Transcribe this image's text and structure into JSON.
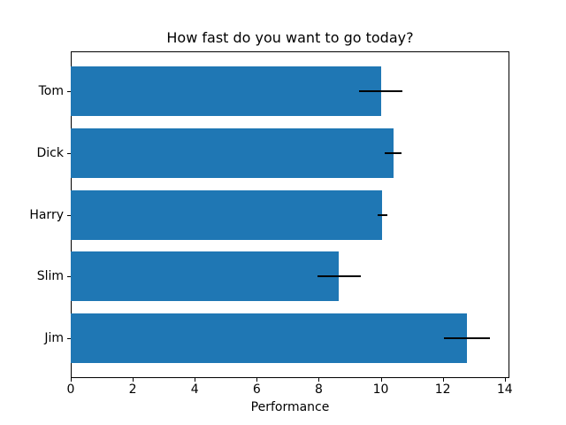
{
  "chart_data": {
    "type": "bar",
    "orientation": "horizontal",
    "title": "How fast do you want to go today?",
    "xlabel": "Performance",
    "ylabel": "",
    "categories": [
      "Tom",
      "Dick",
      "Harry",
      "Slim",
      "Jim"
    ],
    "values": [
      10.0,
      10.4,
      10.05,
      8.65,
      12.78
    ],
    "errors": [
      0.7,
      0.28,
      0.15,
      0.7,
      0.73
    ],
    "xticks": [
      0,
      2,
      4,
      6,
      8,
      10,
      12,
      14
    ],
    "xlim": [
      0,
      14.15
    ],
    "y_inverted": true,
    "grid": false,
    "legend": null,
    "bar_color": "#1f77b4",
    "error_color": "#000000",
    "background_color": "#ffffff"
  }
}
